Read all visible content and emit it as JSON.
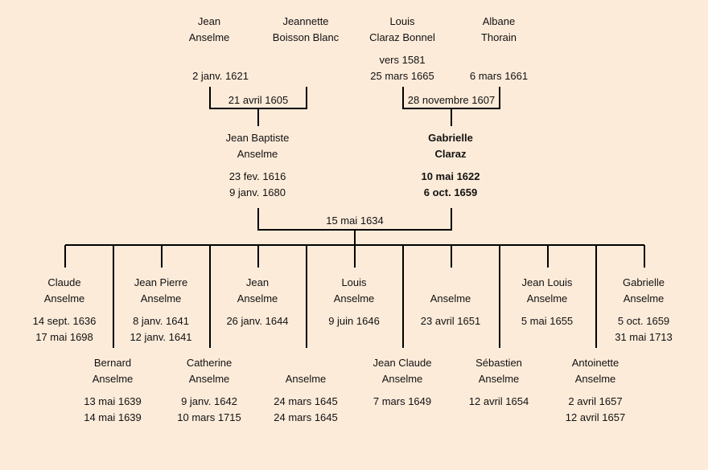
{
  "grandparents": [
    {
      "first": "Jean",
      "last": "Anselme",
      "birth": "",
      "death": "2 janv. 1621"
    },
    {
      "first": "Jeannette",
      "last": "Boisson Blanc",
      "birth": "",
      "death": ""
    },
    {
      "first": "Louis",
      "last": "Claraz Bonnel",
      "birth": "vers 1581",
      "death": "25 mars 1665"
    },
    {
      "first": "Albane",
      "last": "Thorain",
      "birth": "",
      "death": "6 mars 1661"
    }
  ],
  "marriages": {
    "paternal": "21 avril 1605",
    "maternal": "28 novembre 1607",
    "parents": "15 mai 1634"
  },
  "parents": [
    {
      "first": "Jean Baptiste",
      "last": "Anselme",
      "birth": "23 fev. 1616",
      "death": "9 janv. 1680",
      "highlighted": false
    },
    {
      "first": "Gabrielle",
      "last": "Claraz",
      "birth": "10 mai 1622",
      "death": "6 oct. 1659",
      "highlighted": true
    }
  ],
  "children_top": [
    {
      "first": "Claude",
      "last": "Anselme",
      "birth": "14 sept. 1636",
      "death": "17 mai 1698"
    },
    {
      "first": "Jean Pierre",
      "last": "Anselme",
      "birth": "8 janv. 1641",
      "death": "12 janv. 1641"
    },
    {
      "first": "Jean",
      "last": "Anselme",
      "birth": "26 janv. 1644",
      "death": ""
    },
    {
      "first": "Louis",
      "last": "Anselme",
      "birth": "9 juin 1646",
      "death": ""
    },
    {
      "first": "",
      "last": "Anselme",
      "birth": "23 avril 1651",
      "death": ""
    },
    {
      "first": "Jean Louis",
      "last": "Anselme",
      "birth": "5 mai 1655",
      "death": ""
    },
    {
      "first": "Gabrielle",
      "last": "Anselme",
      "birth": "5 oct. 1659",
      "death": "31 mai 1713"
    }
  ],
  "children_bottom": [
    {
      "first": "Bernard",
      "last": "Anselme",
      "birth": "13 mai 1639",
      "death": "14 mai 1639"
    },
    {
      "first": "Catherine",
      "last": "Anselme",
      "birth": "9 janv. 1642",
      "death": "10 mars 1715"
    },
    {
      "first": "",
      "last": "Anselme",
      "birth": "24 mars 1645",
      "death": "24 mars 1645"
    },
    {
      "first": "Jean Claude",
      "last": "Anselme",
      "birth": "7 mars 1649",
      "death": ""
    },
    {
      "first": "Sébastien",
      "last": "Anselme",
      "birth": "12 avril 1654",
      "death": ""
    },
    {
      "first": "Antoinette",
      "last": "Anselme",
      "birth": "2 avril 1657",
      "death": "12 avril 1657"
    }
  ],
  "colors": {
    "background": "#fdebd9",
    "lines": "#000000"
  }
}
